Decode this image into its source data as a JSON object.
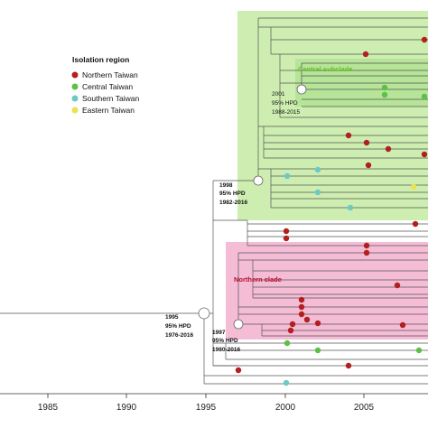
{
  "colors": {
    "northern": "#b21f1f",
    "central": "#5cc046",
    "southern": "#6cc9c6",
    "eastern": "#e6e451",
    "green_box": "#cdeeb0",
    "green_box_inner": "#a6dd88",
    "pink_box": "#f5bcd6",
    "central_label": "#6bbf2a",
    "northern_label": "#b2112b"
  },
  "legend": {
    "title": "Isolation region",
    "items": [
      {
        "label": "Northern Taiwan",
        "color": "#b21f1f"
      },
      {
        "label": "Central Taiwan",
        "color": "#5cc046"
      },
      {
        "label": "Southern Taiwan",
        "color": "#6cc9c6"
      },
      {
        "label": "Eastern Taiwan",
        "color": "#e6e451"
      }
    ]
  },
  "clades": {
    "central_subclade": "Central subclade",
    "northern_clade": "Northern clade"
  },
  "nodes": [
    {
      "year": "2001",
      "hpd": "95% HPD",
      "range": "1988-2015"
    },
    {
      "year": "1998",
      "hpd": "95% HPD",
      "range": "1982-2016"
    },
    {
      "year": "1995",
      "hpd": "95% HPD",
      "range": "1976-2016"
    },
    {
      "year": "1997",
      "hpd": "95% HPD",
      "range": "1980-2016"
    }
  ],
  "axis": {
    "ticks": [
      "1985",
      "1990",
      "1995",
      "2000",
      "2005"
    ]
  }
}
